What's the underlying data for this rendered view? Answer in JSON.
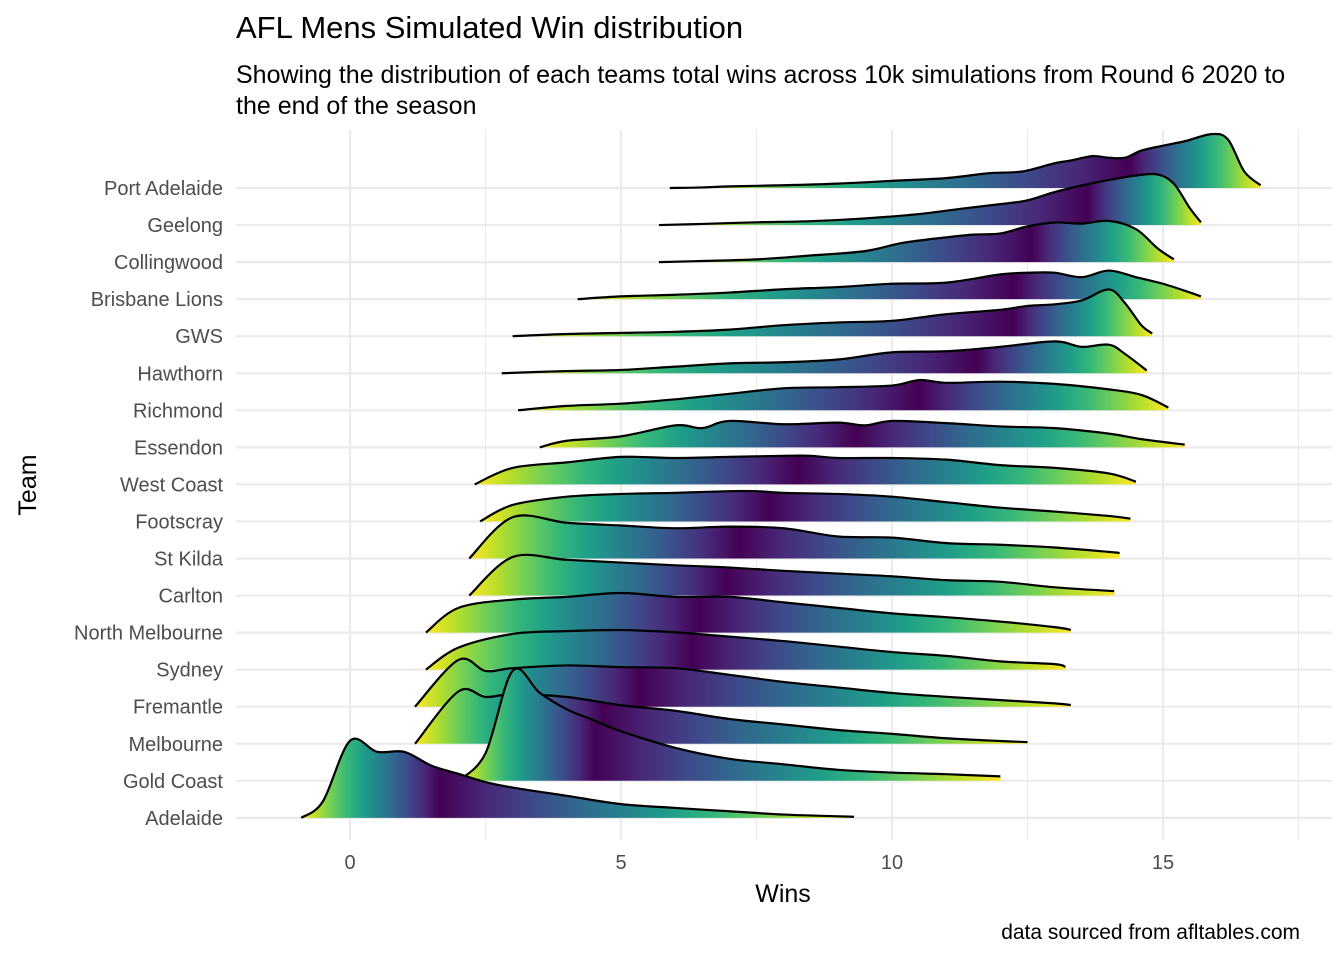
{
  "chart_data": {
    "type": "ridgeline",
    "title": "AFL Mens Simulated Win distribution",
    "subtitle": "Showing the distribution of each teams total wins across 10k simulations from Round 6 2020 to the end of the season",
    "caption": "data sourced from afltables.com",
    "xlabel": "Wins",
    "ylabel": "Team",
    "xlim": [
      -2.1,
      17.8
    ],
    "x_ticks": [
      0,
      5,
      10,
      15
    ],
    "grid": true,
    "fill": "viridis gradient along x",
    "series": [
      {
        "name": "Port Adelaide",
        "points": [
          [
            5.9,
            0.0
          ],
          [
            6.5,
            0.01
          ],
          [
            7.0,
            0.03
          ],
          [
            8.0,
            0.05
          ],
          [
            9.0,
            0.08
          ],
          [
            10.0,
            0.13
          ],
          [
            11.0,
            0.18
          ],
          [
            11.8,
            0.27
          ],
          [
            12.4,
            0.3
          ],
          [
            13.0,
            0.45
          ],
          [
            13.3,
            0.5
          ],
          [
            13.7,
            0.58
          ],
          [
            14.0,
            0.55
          ],
          [
            14.3,
            0.55
          ],
          [
            14.6,
            0.68
          ],
          [
            15.0,
            0.77
          ],
          [
            15.4,
            0.85
          ],
          [
            15.9,
            0.98
          ],
          [
            16.2,
            0.88
          ],
          [
            16.5,
            0.3
          ],
          [
            16.8,
            0.05
          ]
        ]
      },
      {
        "name": "Geelong",
        "points": [
          [
            5.7,
            0.0
          ],
          [
            6.5,
            0.02
          ],
          [
            7.5,
            0.05
          ],
          [
            8.5,
            0.07
          ],
          [
            9.5,
            0.12
          ],
          [
            10.5,
            0.2
          ],
          [
            11.3,
            0.3
          ],
          [
            12.0,
            0.38
          ],
          [
            12.5,
            0.45
          ],
          [
            13.0,
            0.6
          ],
          [
            13.5,
            0.72
          ],
          [
            14.0,
            0.82
          ],
          [
            14.5,
            0.9
          ],
          [
            14.9,
            0.92
          ],
          [
            15.2,
            0.75
          ],
          [
            15.5,
            0.3
          ],
          [
            15.7,
            0.05
          ]
        ]
      },
      {
        "name": "Collingwood",
        "points": [
          [
            5.7,
            0.0
          ],
          [
            6.5,
            0.02
          ],
          [
            7.5,
            0.05
          ],
          [
            8.5,
            0.12
          ],
          [
            9.5,
            0.2
          ],
          [
            10.2,
            0.35
          ],
          [
            11.0,
            0.45
          ],
          [
            11.5,
            0.5
          ],
          [
            12.0,
            0.52
          ],
          [
            12.5,
            0.65
          ],
          [
            13.0,
            0.72
          ],
          [
            13.5,
            0.7
          ],
          [
            14.0,
            0.75
          ],
          [
            14.5,
            0.6
          ],
          [
            14.9,
            0.25
          ],
          [
            15.2,
            0.05
          ]
        ]
      },
      {
        "name": "Brisbane Lions",
        "points": [
          [
            4.2,
            0.0
          ],
          [
            5.0,
            0.05
          ],
          [
            6.0,
            0.08
          ],
          [
            7.0,
            0.12
          ],
          [
            8.0,
            0.18
          ],
          [
            9.0,
            0.22
          ],
          [
            10.0,
            0.28
          ],
          [
            11.0,
            0.3
          ],
          [
            12.0,
            0.45
          ],
          [
            12.5,
            0.48
          ],
          [
            13.0,
            0.48
          ],
          [
            13.5,
            0.4
          ],
          [
            14.0,
            0.52
          ],
          [
            14.5,
            0.4
          ],
          [
            15.0,
            0.28
          ],
          [
            15.5,
            0.12
          ],
          [
            15.7,
            0.05
          ]
        ]
      },
      {
        "name": "GWS",
        "points": [
          [
            3.0,
            0.0
          ],
          [
            4.0,
            0.04
          ],
          [
            5.0,
            0.06
          ],
          [
            6.0,
            0.08
          ],
          [
            7.0,
            0.12
          ],
          [
            8.0,
            0.2
          ],
          [
            9.0,
            0.25
          ],
          [
            10.0,
            0.28
          ],
          [
            11.0,
            0.4
          ],
          [
            12.0,
            0.48
          ],
          [
            12.5,
            0.55
          ],
          [
            13.0,
            0.58
          ],
          [
            13.5,
            0.65
          ],
          [
            14.0,
            0.85
          ],
          [
            14.3,
            0.6
          ],
          [
            14.6,
            0.2
          ],
          [
            14.8,
            0.05
          ]
        ]
      },
      {
        "name": "Hawthorn",
        "points": [
          [
            2.8,
            0.0
          ],
          [
            4.0,
            0.04
          ],
          [
            5.0,
            0.06
          ],
          [
            6.0,
            0.12
          ],
          [
            7.0,
            0.18
          ],
          [
            8.0,
            0.2
          ],
          [
            9.0,
            0.25
          ],
          [
            10.0,
            0.38
          ],
          [
            11.0,
            0.4
          ],
          [
            12.0,
            0.48
          ],
          [
            13.0,
            0.58
          ],
          [
            13.5,
            0.48
          ],
          [
            14.0,
            0.52
          ],
          [
            14.3,
            0.35
          ],
          [
            14.7,
            0.05
          ]
        ]
      },
      {
        "name": "Richmond",
        "points": [
          [
            3.1,
            0.0
          ],
          [
            4.0,
            0.08
          ],
          [
            5.0,
            0.12
          ],
          [
            6.0,
            0.2
          ],
          [
            7.0,
            0.3
          ],
          [
            8.0,
            0.4
          ],
          [
            9.0,
            0.42
          ],
          [
            10.0,
            0.45
          ],
          [
            10.5,
            0.55
          ],
          [
            11.0,
            0.5
          ],
          [
            12.0,
            0.52
          ],
          [
            13.0,
            0.48
          ],
          [
            14.0,
            0.38
          ],
          [
            14.6,
            0.28
          ],
          [
            15.1,
            0.05
          ]
        ]
      },
      {
        "name": "Essendon",
        "points": [
          [
            3.5,
            0.0
          ],
          [
            4.0,
            0.12
          ],
          [
            5.0,
            0.2
          ],
          [
            6.0,
            0.4
          ],
          [
            6.5,
            0.35
          ],
          [
            7.0,
            0.48
          ],
          [
            8.0,
            0.42
          ],
          [
            9.0,
            0.45
          ],
          [
            9.5,
            0.4
          ],
          [
            10.0,
            0.48
          ],
          [
            11.0,
            0.44
          ],
          [
            12.0,
            0.38
          ],
          [
            13.0,
            0.35
          ],
          [
            14.0,
            0.25
          ],
          [
            14.6,
            0.15
          ],
          [
            15.4,
            0.05
          ]
        ]
      },
      {
        "name": "West Coast",
        "points": [
          [
            2.3,
            0.0
          ],
          [
            3.0,
            0.3
          ],
          [
            4.0,
            0.4
          ],
          [
            5.0,
            0.5
          ],
          [
            6.0,
            0.48
          ],
          [
            7.0,
            0.5
          ],
          [
            8.0,
            0.52
          ],
          [
            8.5,
            0.52
          ],
          [
            9.0,
            0.48
          ],
          [
            10.0,
            0.48
          ],
          [
            11.0,
            0.45
          ],
          [
            12.0,
            0.35
          ],
          [
            13.0,
            0.3
          ],
          [
            14.0,
            0.2
          ],
          [
            14.5,
            0.05
          ]
        ]
      },
      {
        "name": "Footscray",
        "points": [
          [
            2.4,
            0.0
          ],
          [
            3.0,
            0.3
          ],
          [
            4.0,
            0.45
          ],
          [
            5.0,
            0.5
          ],
          [
            6.0,
            0.52
          ],
          [
            7.0,
            0.55
          ],
          [
            7.5,
            0.55
          ],
          [
            8.0,
            0.52
          ],
          [
            9.0,
            0.5
          ],
          [
            10.0,
            0.45
          ],
          [
            11.0,
            0.35
          ],
          [
            12.0,
            0.25
          ],
          [
            13.0,
            0.18
          ],
          [
            14.0,
            0.1
          ],
          [
            14.4,
            0.05
          ]
        ]
      },
      {
        "name": "St Kilda",
        "points": [
          [
            2.2,
            0.0
          ],
          [
            3.0,
            0.75
          ],
          [
            4.0,
            0.65
          ],
          [
            5.0,
            0.6
          ],
          [
            6.0,
            0.55
          ],
          [
            7.0,
            0.58
          ],
          [
            8.0,
            0.55
          ],
          [
            9.0,
            0.4
          ],
          [
            10.0,
            0.38
          ],
          [
            11.0,
            0.28
          ],
          [
            12.0,
            0.25
          ],
          [
            13.0,
            0.2
          ],
          [
            14.0,
            0.12
          ],
          [
            14.2,
            0.1
          ]
        ]
      },
      {
        "name": "Carlton",
        "points": [
          [
            2.2,
            0.0
          ],
          [
            3.0,
            0.7
          ],
          [
            4.0,
            0.65
          ],
          [
            5.0,
            0.6
          ],
          [
            6.0,
            0.55
          ],
          [
            6.8,
            0.52
          ],
          [
            7.5,
            0.48
          ],
          [
            8.0,
            0.45
          ],
          [
            9.0,
            0.4
          ],
          [
            10.0,
            0.35
          ],
          [
            11.0,
            0.28
          ],
          [
            12.0,
            0.25
          ],
          [
            13.0,
            0.15
          ],
          [
            14.1,
            0.08
          ]
        ]
      },
      {
        "name": "North Melbourne",
        "points": [
          [
            1.4,
            0.0
          ],
          [
            2.0,
            0.45
          ],
          [
            3.0,
            0.6
          ],
          [
            4.0,
            0.65
          ],
          [
            5.0,
            0.72
          ],
          [
            6.0,
            0.65
          ],
          [
            7.0,
            0.65
          ],
          [
            8.0,
            0.55
          ],
          [
            9.0,
            0.45
          ],
          [
            10.0,
            0.35
          ],
          [
            11.0,
            0.28
          ],
          [
            12.0,
            0.2
          ],
          [
            13.0,
            0.1
          ],
          [
            13.3,
            0.05
          ]
        ]
      },
      {
        "name": "Sydney",
        "points": [
          [
            1.4,
            0.0
          ],
          [
            2.0,
            0.4
          ],
          [
            3.0,
            0.65
          ],
          [
            4.0,
            0.7
          ],
          [
            5.0,
            0.72
          ],
          [
            6.0,
            0.68
          ],
          [
            7.0,
            0.6
          ],
          [
            8.0,
            0.52
          ],
          [
            9.0,
            0.42
          ],
          [
            10.0,
            0.32
          ],
          [
            11.0,
            0.25
          ],
          [
            12.0,
            0.15
          ],
          [
            13.0,
            0.1
          ],
          [
            13.2,
            0.05
          ]
        ]
      },
      {
        "name": "Fremantle",
        "points": [
          [
            1.2,
            0.0
          ],
          [
            2.0,
            0.85
          ],
          [
            2.5,
            0.65
          ],
          [
            3.0,
            0.7
          ],
          [
            4.0,
            0.75
          ],
          [
            5.0,
            0.72
          ],
          [
            6.0,
            0.7
          ],
          [
            7.0,
            0.58
          ],
          [
            8.0,
            0.45
          ],
          [
            9.0,
            0.35
          ],
          [
            10.0,
            0.25
          ],
          [
            11.0,
            0.18
          ],
          [
            12.0,
            0.12
          ],
          [
            13.0,
            0.06
          ],
          [
            13.3,
            0.03
          ]
        ]
      },
      {
        "name": "Melbourne",
        "points": [
          [
            1.2,
            0.0
          ],
          [
            2.0,
            0.95
          ],
          [
            2.5,
            0.85
          ],
          [
            3.0,
            0.9
          ],
          [
            4.0,
            0.85
          ],
          [
            5.0,
            0.7
          ],
          [
            6.0,
            0.6
          ],
          [
            7.0,
            0.45
          ],
          [
            8.0,
            0.35
          ],
          [
            9.0,
            0.25
          ],
          [
            10.0,
            0.18
          ],
          [
            11.0,
            0.1
          ],
          [
            12.0,
            0.05
          ],
          [
            12.5,
            0.03
          ]
        ]
      },
      {
        "name": "Gold Coast",
        "points": [
          [
            2.0,
            0.0
          ],
          [
            2.5,
            0.5
          ],
          [
            3.0,
            2.0
          ],
          [
            3.5,
            1.6
          ],
          [
            4.0,
            1.3
          ],
          [
            4.5,
            1.1
          ],
          [
            5.0,
            0.9
          ],
          [
            6.0,
            0.6
          ],
          [
            7.0,
            0.4
          ],
          [
            8.0,
            0.3
          ],
          [
            9.0,
            0.2
          ],
          [
            10.0,
            0.15
          ],
          [
            11.0,
            0.12
          ],
          [
            12.0,
            0.08
          ]
        ]
      },
      {
        "name": "Adelaide",
        "points": [
          [
            -0.9,
            0.0
          ],
          [
            -0.5,
            0.3
          ],
          [
            0.0,
            1.4
          ],
          [
            0.5,
            1.2
          ],
          [
            1.0,
            1.2
          ],
          [
            1.5,
            0.95
          ],
          [
            2.0,
            0.8
          ],
          [
            2.5,
            0.65
          ],
          [
            3.0,
            0.55
          ],
          [
            4.0,
            0.4
          ],
          [
            5.0,
            0.25
          ],
          [
            6.0,
            0.18
          ],
          [
            7.0,
            0.12
          ],
          [
            8.0,
            0.06
          ],
          [
            9.3,
            0.02
          ]
        ]
      }
    ]
  }
}
